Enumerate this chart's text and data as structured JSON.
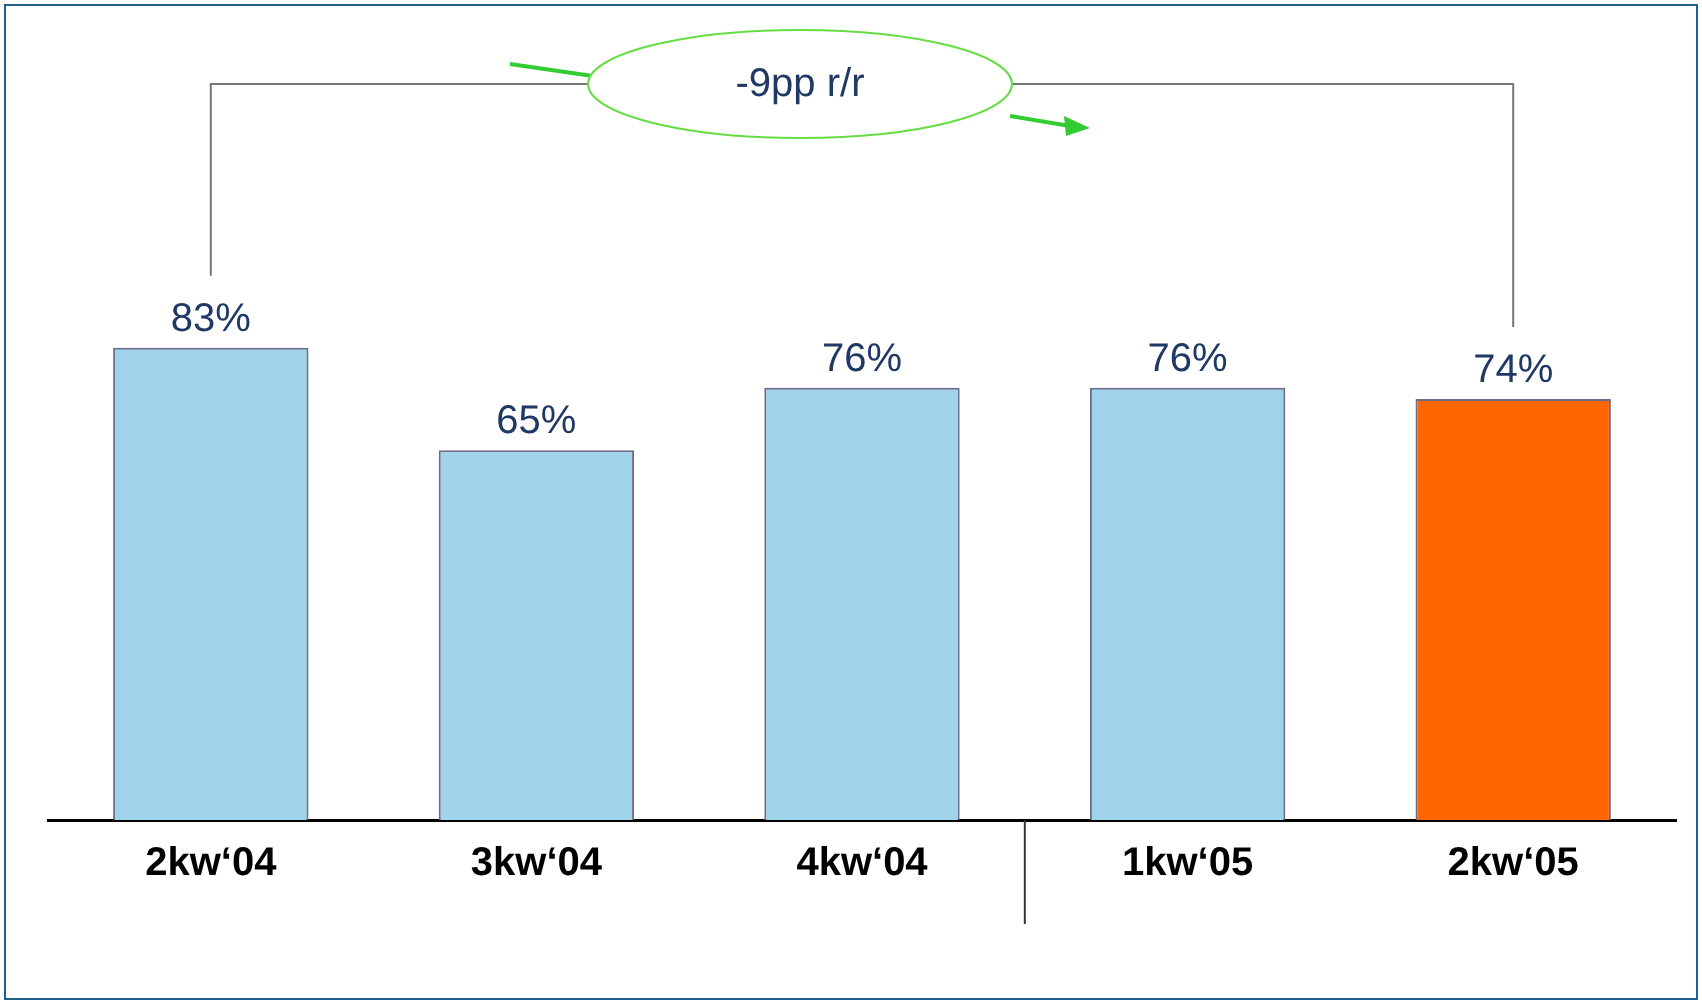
{
  "chart_data": {
    "type": "bar",
    "categories": [
      "2kw‘04",
      "3kw‘04",
      "4kw‘04",
      "1kw‘05",
      "2kw‘05"
    ],
    "values": [
      83,
      65,
      76,
      76,
      74
    ],
    "colors": [
      "#9fd3ea",
      "#9fd3ea",
      "#9fd3ea",
      "#9fd3ea",
      "#ff6600"
    ],
    "value_labels": [
      "83%",
      "65%",
      "76%",
      "76%",
      "74%"
    ],
    "annotations": [
      "-9pp r/r"
    ]
  }
}
